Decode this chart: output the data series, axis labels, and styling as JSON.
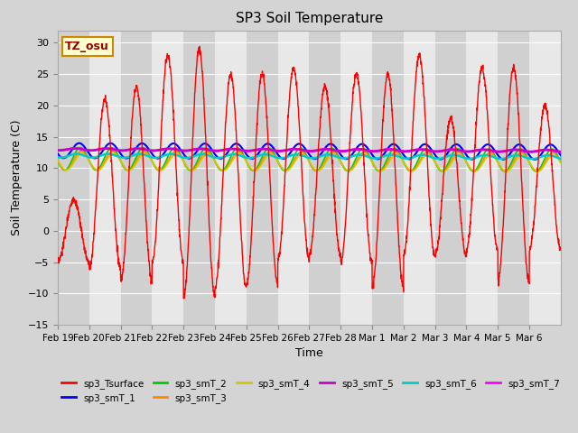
{
  "title": "SP3 Soil Temperature",
  "xlabel": "Time",
  "ylabel": "Soil Temperature (C)",
  "ylim": [
    -15,
    32
  ],
  "yticks": [
    -15,
    -10,
    -5,
    0,
    5,
    10,
    15,
    20,
    25,
    30
  ],
  "fig_bg_color": "#d4d4d4",
  "plot_bg_color": "#e8e8e8",
  "grid_band_color": "#d0d0d0",
  "tz_label": "TZ_osu",
  "num_days": 16,
  "x_tick_labels": [
    "Feb 19",
    "Feb 20",
    "Feb 21",
    "Feb 22",
    "Feb 23",
    "Feb 24",
    "Feb 25",
    "Feb 26",
    "Feb 27",
    "Feb 28",
    "Mar 1",
    "Mar 2",
    "Mar 3",
    "Mar 4",
    "Mar 5",
    "Mar 6"
  ],
  "surface": {
    "color": "#ff0000",
    "lw": 1.0,
    "day_peaks": [
      5,
      21,
      23,
      28,
      29,
      25,
      25,
      26,
      23,
      25,
      25,
      28,
      18,
      26,
      26,
      20
    ],
    "day_troughs": [
      -5,
      -6,
      -8,
      -5,
      -10.5,
      -9,
      -8.5,
      -4.5,
      -4,
      -5,
      -9,
      -4,
      -4,
      -3,
      -8,
      -3
    ]
  },
  "smT_1": {
    "color": "#0000ff",
    "lw": 1.5,
    "mean": 12.8,
    "amp": 1.2,
    "phase": 0.18
  },
  "smT_2": {
    "color": "#00cc00",
    "lw": 1.2,
    "mean": 11.5,
    "amp": 1.8,
    "phase": 0.22
  },
  "smT_3": {
    "color": "#ff8800",
    "lw": 1.2,
    "mean": 11.2,
    "amp": 1.5,
    "phase": 0.25
  },
  "smT_4": {
    "color": "#cccc00",
    "lw": 1.2,
    "mean": 11.0,
    "amp": 1.3,
    "phase": 0.27
  },
  "smT_5": {
    "color": "#cc00cc",
    "lw": 2.0,
    "mean": 13.0,
    "amp": 0.15,
    "phase": 0.05
  },
  "smT_6": {
    "color": "#00cccc",
    "lw": 1.8,
    "mean": 12.0,
    "amp": 0.3,
    "phase": 0.1
  },
  "smT_7": {
    "color": "#ff00ff",
    "lw": 1.5,
    "mean": 13.0,
    "amp": 0.2,
    "phase": 0.03
  },
  "legend": [
    {
      "label": "sp3_Tsurface",
      "color": "#ff0000"
    },
    {
      "label": "sp3_smT_1",
      "color": "#0000ff"
    },
    {
      "label": "sp3_smT_2",
      "color": "#00cc00"
    },
    {
      "label": "sp3_smT_3",
      "color": "#ff8800"
    },
    {
      "label": "sp3_smT_4",
      "color": "#cccc00"
    },
    {
      "label": "sp3_smT_5",
      "color": "#cc00cc"
    },
    {
      "label": "sp3_smT_6",
      "color": "#00cccc"
    },
    {
      "label": "sp3_smT_7",
      "color": "#ff00ff"
    }
  ]
}
